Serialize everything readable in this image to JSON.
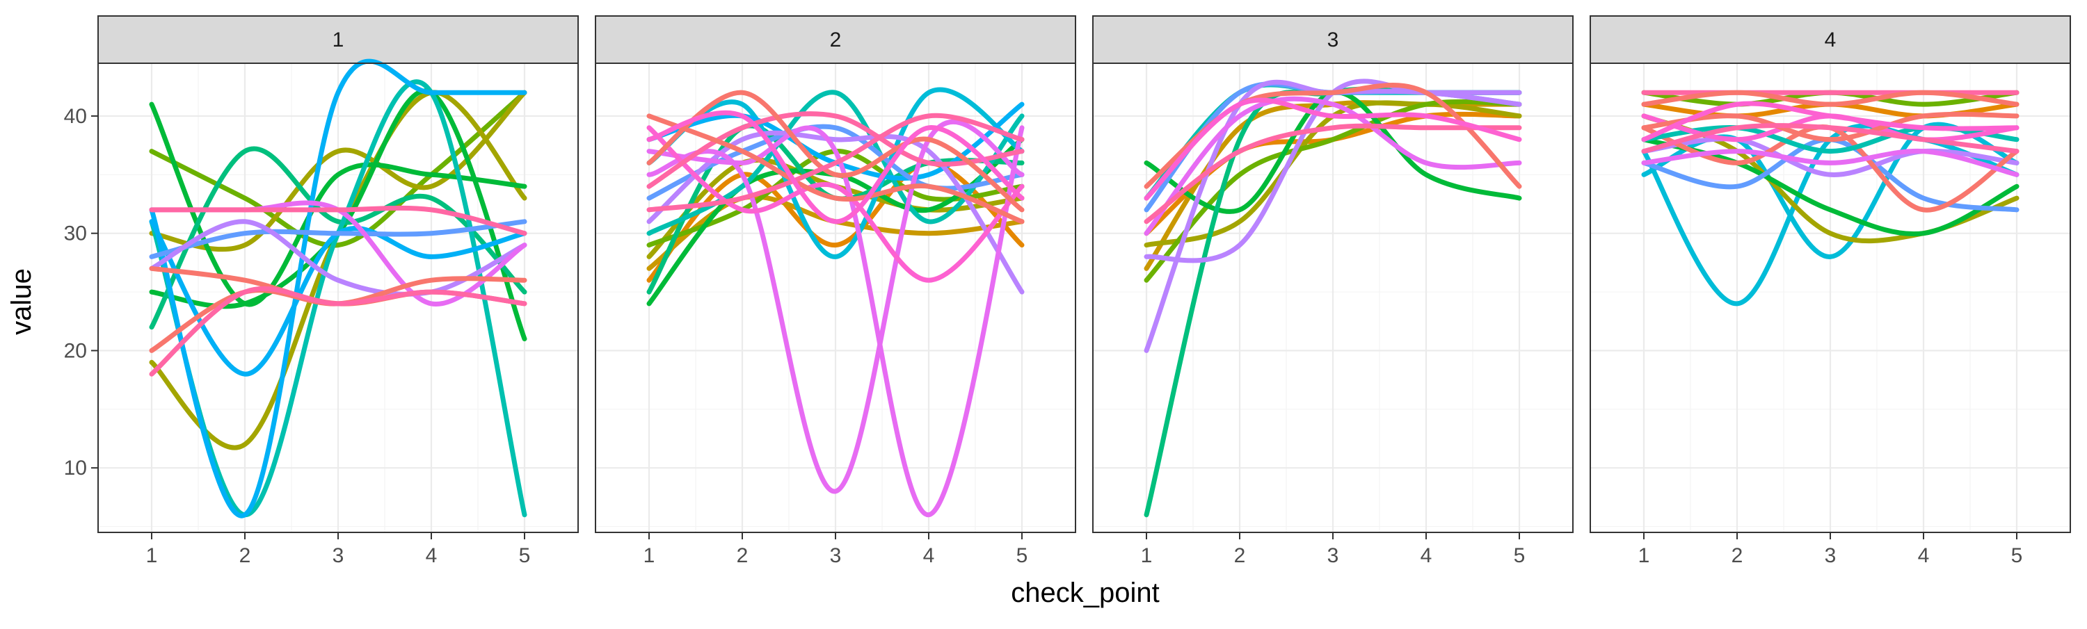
{
  "chart_data": {
    "type": "line",
    "facet_by": "group",
    "facets": [
      "1",
      "2",
      "3",
      "4"
    ],
    "xlabel": "check_point",
    "ylabel": "value",
    "x_ticks": [
      1,
      2,
      3,
      4,
      5
    ],
    "y_ticks": [
      10,
      20,
      30,
      40
    ],
    "ylim": [
      4.5,
      44.5
    ],
    "grid": true,
    "legend": "none",
    "curve": "smooth",
    "colors": [
      "#F8766D",
      "#E58700",
      "#C99800",
      "#A3A500",
      "#6BB100",
      "#00BA38",
      "#00BF7D",
      "#00C0AF",
      "#00BCD8",
      "#00B0F6",
      "#619CFF",
      "#B983FF",
      "#E76BF3",
      "#FD61D1",
      "#FF67A4"
    ],
    "panels": [
      {
        "facet": "1",
        "series": [
          {
            "color": "#6BB100",
            "values": [
              37,
              33,
              29,
              35,
              42
            ]
          },
          {
            "color": "#A3A500",
            "values": [
              19,
              12,
              30,
              42,
              33
            ]
          },
          {
            "color": "#A3A500",
            "values": [
              30,
              29,
              37,
              34,
              42
            ]
          },
          {
            "color": "#00BA38",
            "values": [
              41,
              24,
              35,
              35,
              34
            ]
          },
          {
            "color": "#00BA38",
            "values": [
              25,
              24,
              30,
              42,
              21
            ]
          },
          {
            "color": "#00BF7D",
            "values": [
              22,
              37,
              31,
              33,
              25
            ]
          },
          {
            "color": "#00C0AF",
            "values": [
              31,
              6,
              30,
              42,
              6
            ]
          },
          {
            "color": "#00B0F6",
            "values": [
              32,
              6,
              42,
              42,
              42
            ]
          },
          {
            "color": "#00B0F6",
            "values": [
              31,
              18,
              30,
              28,
              30
            ]
          },
          {
            "color": "#619CFF",
            "values": [
              28,
              30,
              30,
              30,
              31
            ]
          },
          {
            "color": "#B983FF",
            "values": [
              27,
              31,
              26,
              25,
              29
            ]
          },
          {
            "color": "#E76BF3",
            "values": [
              32,
              32,
              32,
              24,
              29
            ]
          },
          {
            "color": "#FF67A4",
            "values": [
              32,
              32,
              32,
              32,
              30
            ]
          },
          {
            "color": "#F8766D",
            "values": [
              20,
              25,
              24,
              26,
              26
            ]
          },
          {
            "color": "#F8766D",
            "values": [
              27,
              26,
              24,
              25,
              24
            ]
          },
          {
            "color": "#FF67A4",
            "values": [
              18,
              25,
              24,
              25,
              24
            ]
          }
        ]
      },
      {
        "facet": "2",
        "series": [
          {
            "color": "#E58700",
            "values": [
              26,
              35,
              29,
              36,
              29
            ]
          },
          {
            "color": "#C99800",
            "values": [
              27,
              33,
              31,
              30,
              31
            ]
          },
          {
            "color": "#A3A500",
            "values": [
              28,
              36,
              34,
              32,
              33
            ]
          },
          {
            "color": "#6BB100",
            "values": [
              29,
              32,
              37,
              33,
              34
            ]
          },
          {
            "color": "#00BA38",
            "values": [
              24,
              34,
              35,
              32,
              38
            ]
          },
          {
            "color": "#00BF7D",
            "values": [
              25,
              39,
              33,
              36,
              36
            ]
          },
          {
            "color": "#00C0AF",
            "values": [
              30,
              34,
              42,
              31,
              40
            ]
          },
          {
            "color": "#00BCD8",
            "values": [
              36,
              41,
              28,
              42,
              37
            ]
          },
          {
            "color": "#00B0F6",
            "values": [
              38,
              40,
              36,
              35,
              41
            ]
          },
          {
            "color": "#619CFF",
            "values": [
              33,
              37,
              39,
              34,
              35
            ]
          },
          {
            "color": "#B983FF",
            "values": [
              31,
              38,
              38,
              37,
              25
            ]
          },
          {
            "color": "#E76BF3",
            "values": [
              35,
              35,
              8,
              38,
              35
            ]
          },
          {
            "color": "#E76BF3",
            "values": [
              37,
              36,
              37,
              6,
              39
            ]
          },
          {
            "color": "#FD61D1",
            "values": [
              39,
              32,
              34,
              26,
              34
            ]
          },
          {
            "color": "#FF67A4",
            "values": [
              34,
              39,
              40,
              36,
              37
            ]
          },
          {
            "color": "#F8766D",
            "values": [
              36,
              42,
              35,
              38,
              32
            ]
          },
          {
            "color": "#F8766D",
            "values": [
              40,
              37,
              33,
              34,
              31
            ]
          },
          {
            "color": "#FF67A4",
            "values": [
              32,
              33,
              36,
              40,
              38
            ]
          },
          {
            "color": "#FD61D1",
            "values": [
              38,
              40,
              31,
              39,
              33
            ]
          }
        ]
      },
      {
        "facet": "3",
        "series": [
          {
            "color": "#E58700",
            "values": [
              30,
              37,
              38,
              40,
              40
            ]
          },
          {
            "color": "#C99800",
            "values": [
              27,
              39,
              41,
              41,
              41
            ]
          },
          {
            "color": "#A3A500",
            "values": [
              29,
              31,
              40,
              41,
              40
            ]
          },
          {
            "color": "#6BB100",
            "values": [
              26,
              35,
              38,
              41,
              41
            ]
          },
          {
            "color": "#00BA38",
            "values": [
              36,
              32,
              42,
              35,
              33
            ]
          },
          {
            "color": "#00BF7D",
            "values": [
              6,
              38,
              42,
              42,
              42
            ]
          },
          {
            "color": "#00C0AF",
            "values": [
              33,
              42,
              42,
              42,
              42
            ]
          },
          {
            "color": "#619CFF",
            "values": [
              32,
              42,
              42,
              42,
              41
            ]
          },
          {
            "color": "#B983FF",
            "values": [
              20,
              41,
              42,
              42,
              41
            ]
          },
          {
            "color": "#B983FF",
            "values": [
              28,
              29,
              42,
              42,
              42
            ]
          },
          {
            "color": "#E76BF3",
            "values": [
              30,
              40,
              41,
              36,
              36
            ]
          },
          {
            "color": "#F8766D",
            "values": [
              34,
              41,
              42,
              42,
              34
            ]
          },
          {
            "color": "#FF67A4",
            "values": [
              31,
              37,
              39,
              39,
              39
            ]
          },
          {
            "color": "#FD61D1",
            "values": [
              33,
              41,
              40,
              40,
              38
            ]
          }
        ]
      },
      {
        "facet": "4",
        "series": [
          {
            "color": "#00BCD8",
            "values": [
              37,
              24,
              38,
              38,
              35
            ]
          },
          {
            "color": "#00BCD8",
            "values": [
              35,
              38,
              28,
              39,
              36
            ]
          },
          {
            "color": "#A3A500",
            "values": [
              40,
              37,
              30,
              30,
              33
            ]
          },
          {
            "color": "#00BA38",
            "values": [
              38,
              36,
              32,
              30,
              34
            ]
          },
          {
            "color": "#619CFF",
            "values": [
              36,
              34,
              38,
              33,
              32
            ]
          },
          {
            "color": "#B983FF",
            "values": [
              37,
              38,
              35,
              37,
              36
            ]
          },
          {
            "color": "#F8766D",
            "values": [
              39,
              36,
              39,
              32,
              37
            ]
          },
          {
            "color": "#E76BF3",
            "values": [
              36,
              37,
              36,
              37,
              35
            ]
          },
          {
            "color": "#E58700",
            "values": [
              41,
              40,
              41,
              40,
              41
            ]
          },
          {
            "color": "#6BB100",
            "values": [
              42,
              41,
              42,
              41,
              42
            ]
          },
          {
            "color": "#00C0AF",
            "values": [
              38,
              39,
              37,
              39,
              38
            ]
          },
          {
            "color": "#FD61D1",
            "values": [
              40,
              38,
              40,
              38,
              39
            ]
          },
          {
            "color": "#FF67A4",
            "values": [
              42,
              42,
              42,
              42,
              42
            ]
          },
          {
            "color": "#F8766D",
            "values": [
              39,
              40,
              38,
              40,
              40
            ]
          },
          {
            "color": "#FF67A4",
            "values": [
              37,
              39,
              39,
              38,
              37
            ]
          },
          {
            "color": "#F8766D",
            "values": [
              41,
              42,
              41,
              42,
              41
            ]
          },
          {
            "color": "#FD61D1",
            "values": [
              38,
              41,
              40,
              39,
              39
            ]
          }
        ]
      }
    ]
  }
}
